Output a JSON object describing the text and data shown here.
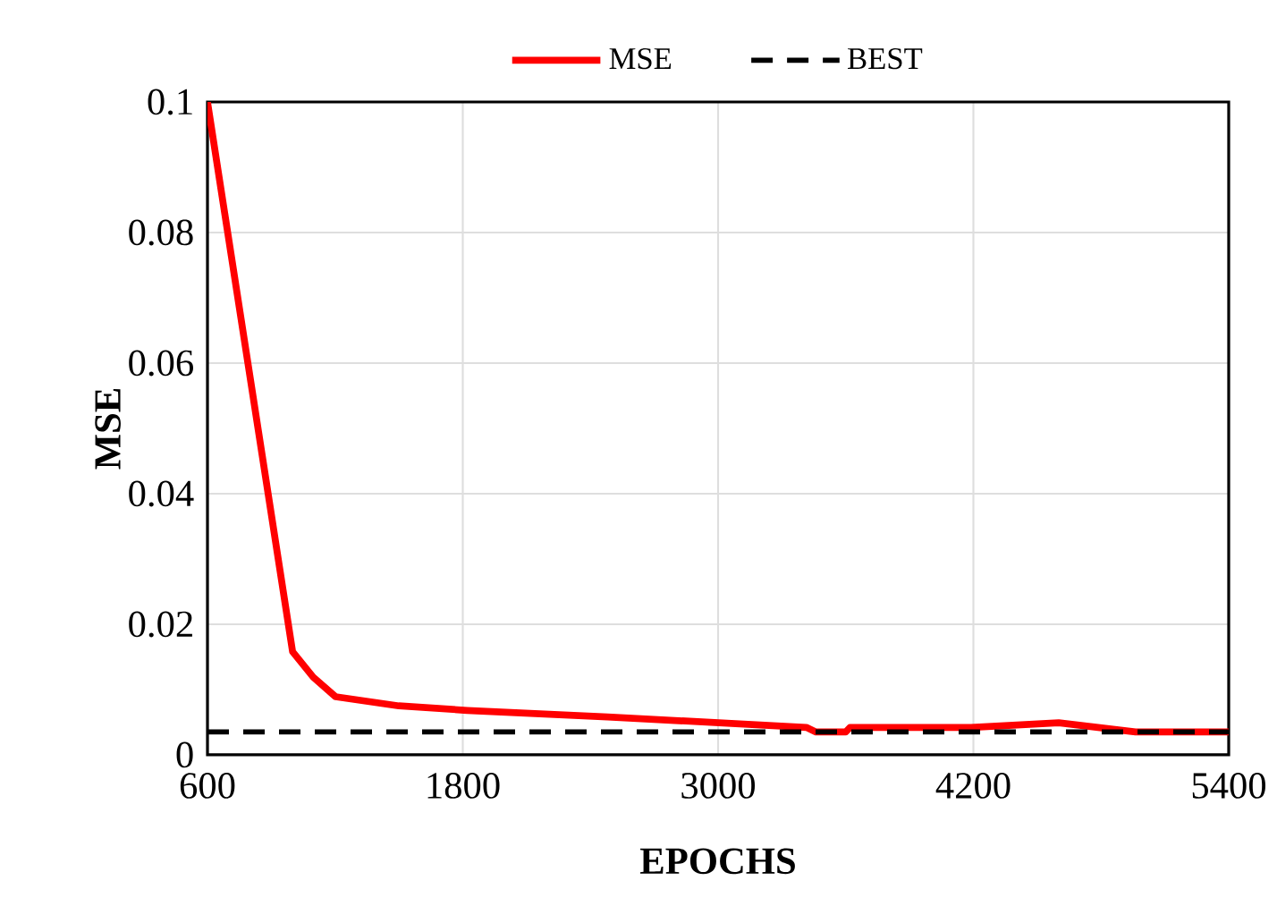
{
  "chart_data": {
    "type": "line",
    "xlabel": "EPOCHS",
    "ylabel": "MSE",
    "series": [
      {
        "name": "MSE",
        "color": "#ff0000",
        "x": [
          600,
          1000,
          1097,
          1202,
          1499,
          1821,
          2481,
          3415,
          3460,
          3600,
          3620,
          4189,
          4601,
          4962,
          5400
        ],
        "values": [
          0.1,
          0.0158,
          0.0119,
          0.0089,
          0.0075,
          0.0068,
          0.0058,
          0.0042,
          0.0035,
          0.0035,
          0.0042,
          0.0042,
          0.0049,
          0.0035,
          0.0035
        ]
      },
      {
        "name": "BEST",
        "color": "#000000",
        "line_style": "dashed",
        "x": [
          600,
          5400
        ],
        "values": [
          0.0035,
          0.0035
        ]
      }
    ],
    "xlim": [
      600,
      5400
    ],
    "xticks": [
      600,
      1800,
      3000,
      4200,
      5400
    ],
    "ylim": [
      0,
      0.1
    ],
    "yticks": [
      0,
      0.02,
      0.04,
      0.06,
      0.08,
      0.1
    ],
    "grid": true,
    "legend": "top"
  }
}
